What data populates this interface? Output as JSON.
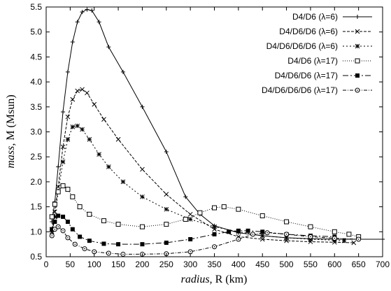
{
  "chart_data": {
    "type": "line",
    "title": "",
    "xlabel_italic": "radius,",
    "xlabel_rest": "R (km)",
    "ylabel_italic": "mass,",
    "ylabel_rest": "M (Msun)",
    "xlim": [
      0,
      700
    ],
    "ylim": [
      0.5,
      5.5
    ],
    "xticks": [
      0,
      50,
      100,
      150,
      200,
      250,
      300,
      350,
      400,
      450,
      500,
      550,
      600,
      650,
      700
    ],
    "yticks": [
      0.5,
      1.0,
      1.5,
      2.0,
      2.5,
      3.0,
      3.5,
      4.0,
      4.5,
      5.0,
      5.5
    ],
    "xtick_labels": [
      "0",
      "50",
      "100",
      "150",
      "200",
      "250",
      "300",
      "350",
      "400",
      "450",
      "500",
      "550",
      "600",
      "650",
      "700"
    ],
    "ytick_labels": [
      "0.5",
      "1.0",
      "1.5",
      "2.0",
      "2.5",
      "3.0",
      "3.5",
      "4.0",
      "4.5",
      "5.0",
      "5.5"
    ],
    "grid": false,
    "legend_position": "top-right",
    "series": [
      {
        "name": "D4/D6 (λ=6)",
        "marker": "plus",
        "dash": "",
        "x": [
          12,
          18,
          25,
          35,
          45,
          55,
          65,
          75,
          85,
          95,
          110,
          130,
          160,
          200,
          250,
          290,
          320,
          350,
          400,
          450,
          500,
          550,
          600,
          650,
          700
        ],
        "y": [
          1.2,
          1.6,
          2.3,
          3.4,
          4.2,
          4.8,
          5.2,
          5.4,
          5.45,
          5.43,
          5.2,
          4.7,
          4.2,
          3.5,
          2.6,
          1.7,
          1.35,
          1.12,
          0.98,
          0.92,
          0.88,
          0.86,
          0.85,
          0.85,
          0.85
        ]
      },
      {
        "name": "D4/D6/D6 (λ=6)",
        "marker": "cross",
        "dash": "4,2",
        "x": [
          12,
          18,
          25,
          35,
          45,
          55,
          65,
          75,
          85,
          100,
          120,
          150,
          200,
          250,
          300,
          350,
          400,
          450,
          500,
          550,
          600,
          640
        ],
        "y": [
          1.05,
          1.4,
          1.9,
          2.7,
          3.3,
          3.65,
          3.82,
          3.85,
          3.78,
          3.55,
          3.25,
          2.85,
          2.25,
          1.75,
          1.35,
          1.05,
          0.9,
          0.85,
          0.82,
          0.8,
          0.79,
          0.78
        ]
      },
      {
        "name": "D4/D6/D6/D6 (λ=6)",
        "marker": "star",
        "dash": "2,3",
        "x": [
          12,
          18,
          25,
          35,
          45,
          55,
          65,
          75,
          90,
          110,
          130,
          160,
          200,
          250,
          300,
          350,
          400,
          450,
          500,
          550,
          600,
          620
        ],
        "y": [
          1.0,
          1.3,
          1.8,
          2.4,
          2.85,
          3.1,
          3.12,
          3.05,
          2.85,
          2.55,
          2.3,
          2.0,
          1.7,
          1.45,
          1.25,
          1.1,
          1.0,
          0.92,
          0.88,
          0.85,
          0.83,
          0.82
        ]
      },
      {
        "name": "D4/D6 (λ=17)",
        "marker": "square-open",
        "dash": "1,2",
        "x": [
          12,
          18,
          25,
          35,
          45,
          55,
          70,
          90,
          120,
          150,
          200,
          250,
          290,
          320,
          350,
          370,
          400,
          450,
          500,
          550,
          600,
          630,
          650
        ],
        "y": [
          1.3,
          1.55,
          1.8,
          1.92,
          1.85,
          1.7,
          1.5,
          1.35,
          1.22,
          1.15,
          1.1,
          1.15,
          1.25,
          1.38,
          1.48,
          1.5,
          1.45,
          1.32,
          1.2,
          1.1,
          1.0,
          0.95,
          0.9
        ]
      },
      {
        "name": "D4/D6/D6 (λ=17)",
        "marker": "square-filled",
        "dash": "8,3,2,3",
        "x": [
          12,
          18,
          25,
          35,
          45,
          55,
          70,
          90,
          120,
          150,
          200,
          250,
          300,
          350,
          380,
          400,
          420,
          450,
          500,
          550,
          600
        ],
        "y": [
          1.05,
          1.2,
          1.32,
          1.3,
          1.2,
          1.05,
          0.9,
          0.82,
          0.76,
          0.75,
          0.75,
          0.78,
          0.85,
          0.95,
          1.0,
          1.02,
          1.02,
          1.0,
          0.95,
          0.92,
          0.9
        ]
      },
      {
        "name": "D4/D6/D6/D6 (λ=17)",
        "marker": "circle-dot",
        "dash": "5,2,1,2",
        "x": [
          12,
          18,
          25,
          35,
          45,
          60,
          80,
          100,
          130,
          160,
          200,
          250,
          300,
          350,
          400,
          430,
          460,
          500,
          550,
          600,
          650
        ],
        "y": [
          0.92,
          1.05,
          1.1,
          1.02,
          0.88,
          0.75,
          0.66,
          0.6,
          0.57,
          0.55,
          0.55,
          0.56,
          0.6,
          0.7,
          0.85,
          0.95,
          0.98,
          0.95,
          0.9,
          0.87,
          0.85
        ]
      }
    ]
  }
}
